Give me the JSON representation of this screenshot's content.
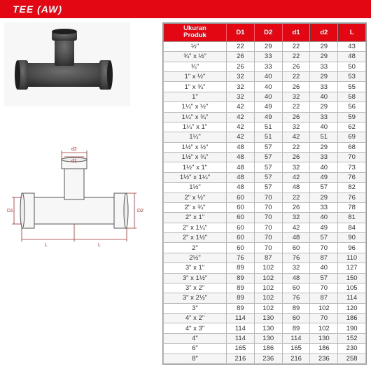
{
  "title": "TEE (AW)",
  "title_bar": {
    "bg": "#e30613",
    "fg": "#ffffff",
    "fontsize": 14
  },
  "photo": {
    "bg": "#f7f7f7",
    "pipe_color": "#4a4a4a",
    "pipe_shadow": "#2c2c2c",
    "pipe_highlight": "#6e6e6e"
  },
  "diagram": {
    "stroke": "#555555",
    "dim_stroke": "#a03030",
    "fill": "#f7f7f7"
  },
  "table": {
    "header_bg": "#e30613",
    "header_fg": "#ffffff",
    "row_even_bg": "#f5f5f5",
    "border": "#bbbbbb",
    "fontsize": 9.5,
    "columns": [
      "Ukuran\nProduk",
      "D1",
      "D2",
      "d1",
      "d2",
      "L"
    ],
    "rows": [
      [
        "½\"",
        22,
        29,
        22,
        29,
        43
      ],
      [
        "¾\" x ½\"",
        26,
        33,
        22,
        29,
        48
      ],
      [
        "¾\"",
        26,
        33,
        26,
        33,
        50
      ],
      [
        "1\" x ½\"",
        32,
        40,
        22,
        29,
        53
      ],
      [
        "1\" x ¾\"",
        32,
        40,
        26,
        33,
        55
      ],
      [
        "1\"",
        32,
        40,
        32,
        40,
        58
      ],
      [
        "1¼\" x ½\"",
        42,
        49,
        22,
        29,
        56
      ],
      [
        "1¼\" x ¾\"",
        42,
        49,
        26,
        33,
        59
      ],
      [
        "1¼\" x 1\"",
        42,
        51,
        32,
        40,
        62
      ],
      [
        "1¼\"",
        42,
        51,
        42,
        51,
        69
      ],
      [
        "1½\" x ½\"",
        48,
        57,
        22,
        29,
        68
      ],
      [
        "1½\" x ¾\"",
        48,
        57,
        26,
        33,
        70
      ],
      [
        "1½\" x 1\"",
        48,
        57,
        32,
        40,
        73
      ],
      [
        "1½\" x 1¼\"",
        48,
        57,
        42,
        49,
        76
      ],
      [
        "1½\"",
        48,
        57,
        48,
        57,
        82
      ],
      [
        "2\" x ½\"",
        60,
        70,
        22,
        29,
        76
      ],
      [
        "2\" x ¾\"",
        60,
        70,
        26,
        33,
        78
      ],
      [
        "2\" x 1\"",
        60,
        70,
        32,
        40,
        81
      ],
      [
        "2\" x 1¼\"",
        60,
        70,
        42,
        49,
        84
      ],
      [
        "2\" x 1½\"",
        60,
        70,
        48,
        57,
        90
      ],
      [
        "2\"",
        60,
        70,
        60,
        70,
        96
      ],
      [
        "2½\"",
        76,
        87,
        76,
        87,
        110
      ],
      [
        "3\" x 1\"",
        89,
        102,
        32,
        40,
        127
      ],
      [
        "3\" x 1½\"",
        89,
        102,
        48,
        57,
        150
      ],
      [
        "3\" x 2\"",
        89,
        102,
        60,
        70,
        105
      ],
      [
        "3\" x 2½\"",
        89,
        102,
        76,
        87,
        114
      ],
      [
        "3\"",
        89,
        102,
        89,
        102,
        120
      ],
      [
        "4\" x 2\"",
        114,
        130,
        60,
        70,
        186
      ],
      [
        "4\" x 3\"",
        114,
        130,
        89,
        102,
        190
      ],
      [
        "4\"",
        114,
        130,
        114,
        130,
        152
      ],
      [
        "6\"",
        165,
        186,
        165,
        186,
        230
      ],
      [
        "8\"",
        216,
        236,
        216,
        236,
        258
      ]
    ]
  }
}
